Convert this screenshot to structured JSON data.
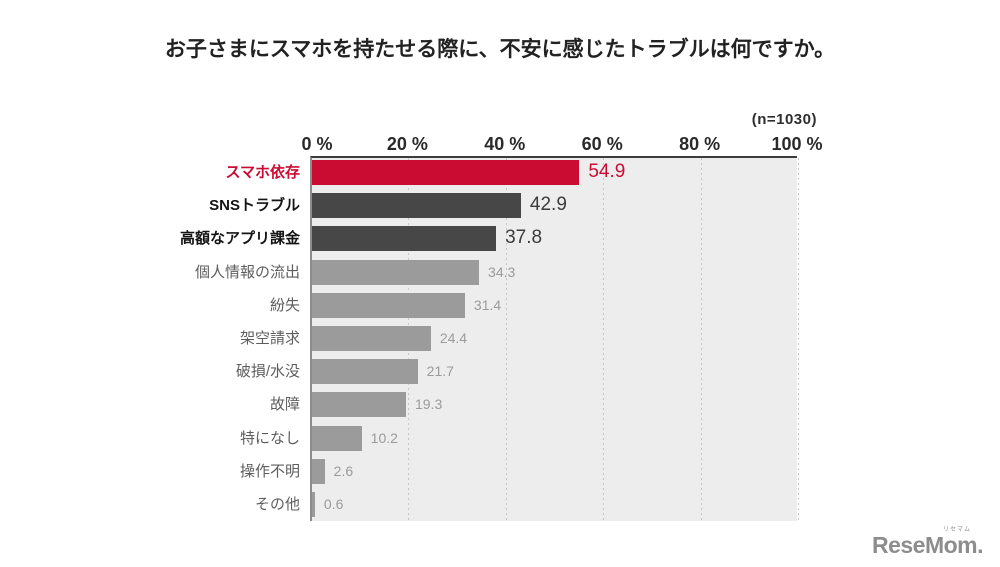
{
  "chart_data": {
    "type": "bar",
    "orientation": "horizontal",
    "title": "お子さまにスマホを持たせる際に、不安に感じたトラブルは何ですか。",
    "sample_label": "(n=1030)",
    "categories": [
      "スマホ依存",
      "SNSトラブル",
      "高額なアプリ課金",
      "個人情報の流出",
      "紛失",
      "架空請求",
      "破損/水没",
      "故障",
      "特になし",
      "操作不明",
      "その他"
    ],
    "values": [
      54.9,
      42.9,
      37.8,
      34.3,
      31.4,
      24.4,
      21.7,
      19.3,
      10.2,
      2.6,
      0.6
    ],
    "xlim": [
      0,
      100
    ],
    "x_ticks": [
      "0 %",
      "20 %",
      "40 %",
      "60 %",
      "80 %",
      "100 %"
    ],
    "x_tick_values": [
      0,
      20,
      40,
      60,
      80,
      100
    ],
    "grid": "vertical-dotted",
    "colors": {
      "highlight": "#ca0c32",
      "dark": "#474747",
      "normal": "#9b9b9b",
      "plot_background": "#ededed"
    },
    "row_styles": [
      "highlight",
      "dark",
      "dark",
      "normal",
      "normal",
      "normal",
      "normal",
      "normal",
      "normal",
      "normal",
      "normal"
    ]
  },
  "footer": {
    "logo_text": "ReseMom",
    "logo_ruby": "リセマム",
    "logo_dot": "."
  }
}
